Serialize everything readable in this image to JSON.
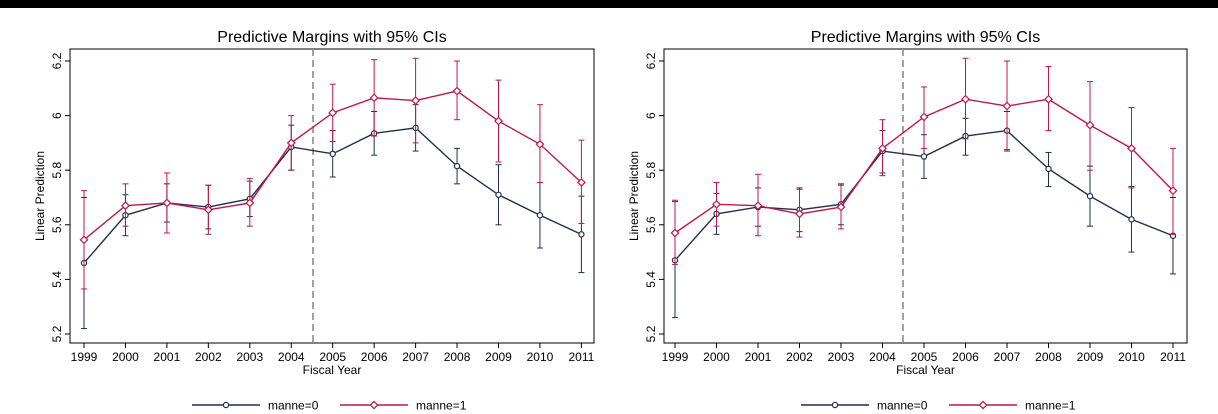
{
  "chart_data": [
    {
      "type": "line",
      "title": "Predictive Margins with 95% CIs",
      "xlabel": "Fiscal Year",
      "ylabel": "Linear Prediction",
      "categories": [
        "1999",
        "2000",
        "2001",
        "2002",
        "2003",
        "2004",
        "2005",
        "2006",
        "2007",
        "2008",
        "2009",
        "2010",
        "2011"
      ],
      "yticks": [
        "5.2",
        "5.4",
        "5.6",
        "5.8",
        "6",
        "6.2"
      ],
      "ylim": [
        5.2,
        6.2
      ],
      "reference_line_x": 2004.5,
      "grid": false,
      "legend_position": "bottom",
      "series": [
        {
          "name": "manne=0",
          "color": "#1f2f4d",
          "marker": "circle",
          "values": [
            5.46,
            5.635,
            5.68,
            5.665,
            5.695,
            5.885,
            5.86,
            5.935,
            5.955,
            5.815,
            5.71,
            5.635,
            5.565
          ],
          "ci_low": [
            5.22,
            5.56,
            5.61,
            5.585,
            5.63,
            5.8,
            5.775,
            5.855,
            5.87,
            5.75,
            5.6,
            5.515,
            5.425
          ],
          "ci_high": [
            5.7,
            5.71,
            5.75,
            5.745,
            5.76,
            5.965,
            5.945,
            6.015,
            6.04,
            5.88,
            5.82,
            5.755,
            5.705
          ]
        },
        {
          "name": "manne=1",
          "color": "#c0174a",
          "marker": "diamond",
          "values": [
            5.545,
            5.67,
            5.68,
            5.655,
            5.68,
            5.9,
            6.01,
            6.065,
            6.055,
            6.09,
            5.98,
            5.895,
            5.755
          ],
          "ci_low": [
            5.365,
            5.595,
            5.57,
            5.565,
            5.595,
            5.8,
            5.905,
            5.925,
            5.9,
            5.985,
            5.83,
            5.755,
            5.605
          ],
          "ci_high": [
            5.725,
            5.75,
            5.79,
            5.745,
            5.77,
            6.0,
            6.115,
            6.205,
            6.21,
            6.2,
            6.13,
            6.04,
            5.91
          ]
        }
      ]
    },
    {
      "type": "line",
      "title": "Predictive Margins with 95% CIs",
      "xlabel": "Fiscal Year",
      "ylabel": "Linear Prediction",
      "categories": [
        "1999",
        "2000",
        "2001",
        "2002",
        "2003",
        "2004",
        "2005",
        "2006",
        "2007",
        "2008",
        "2009",
        "2010",
        "2011"
      ],
      "yticks": [
        "5.2",
        "5.4",
        "5.6",
        "5.8",
        "6",
        "6.2"
      ],
      "ylim": [
        5.2,
        6.2
      ],
      "reference_line_x": 2004.5,
      "grid": false,
      "legend_position": "bottom",
      "series": [
        {
          "name": "manne=0",
          "color": "#1f2f4d",
          "marker": "circle",
          "values": [
            5.47,
            5.64,
            5.665,
            5.655,
            5.675,
            5.87,
            5.85,
            5.925,
            5.945,
            5.805,
            5.705,
            5.62,
            5.56
          ],
          "ci_low": [
            5.26,
            5.565,
            5.595,
            5.575,
            5.6,
            5.79,
            5.77,
            5.855,
            5.875,
            5.74,
            5.595,
            5.5,
            5.42
          ],
          "ci_high": [
            5.685,
            5.715,
            5.735,
            5.735,
            5.75,
            5.945,
            5.93,
            5.99,
            6.015,
            5.865,
            5.815,
            5.74,
            5.7
          ]
        },
        {
          "name": "manne=1",
          "color": "#c0174a",
          "marker": "diamond",
          "values": [
            5.57,
            5.675,
            5.67,
            5.64,
            5.665,
            5.88,
            5.995,
            6.06,
            6.035,
            6.06,
            5.965,
            5.88,
            5.725
          ],
          "ci_low": [
            5.455,
            5.595,
            5.56,
            5.555,
            5.585,
            5.78,
            5.88,
            5.915,
            5.87,
            5.945,
            5.8,
            5.735,
            5.565
          ],
          "ci_high": [
            5.69,
            5.755,
            5.785,
            5.73,
            5.745,
            5.985,
            6.105,
            6.21,
            6.2,
            6.18,
            6.125,
            6.03,
            5.88
          ]
        }
      ]
    }
  ]
}
